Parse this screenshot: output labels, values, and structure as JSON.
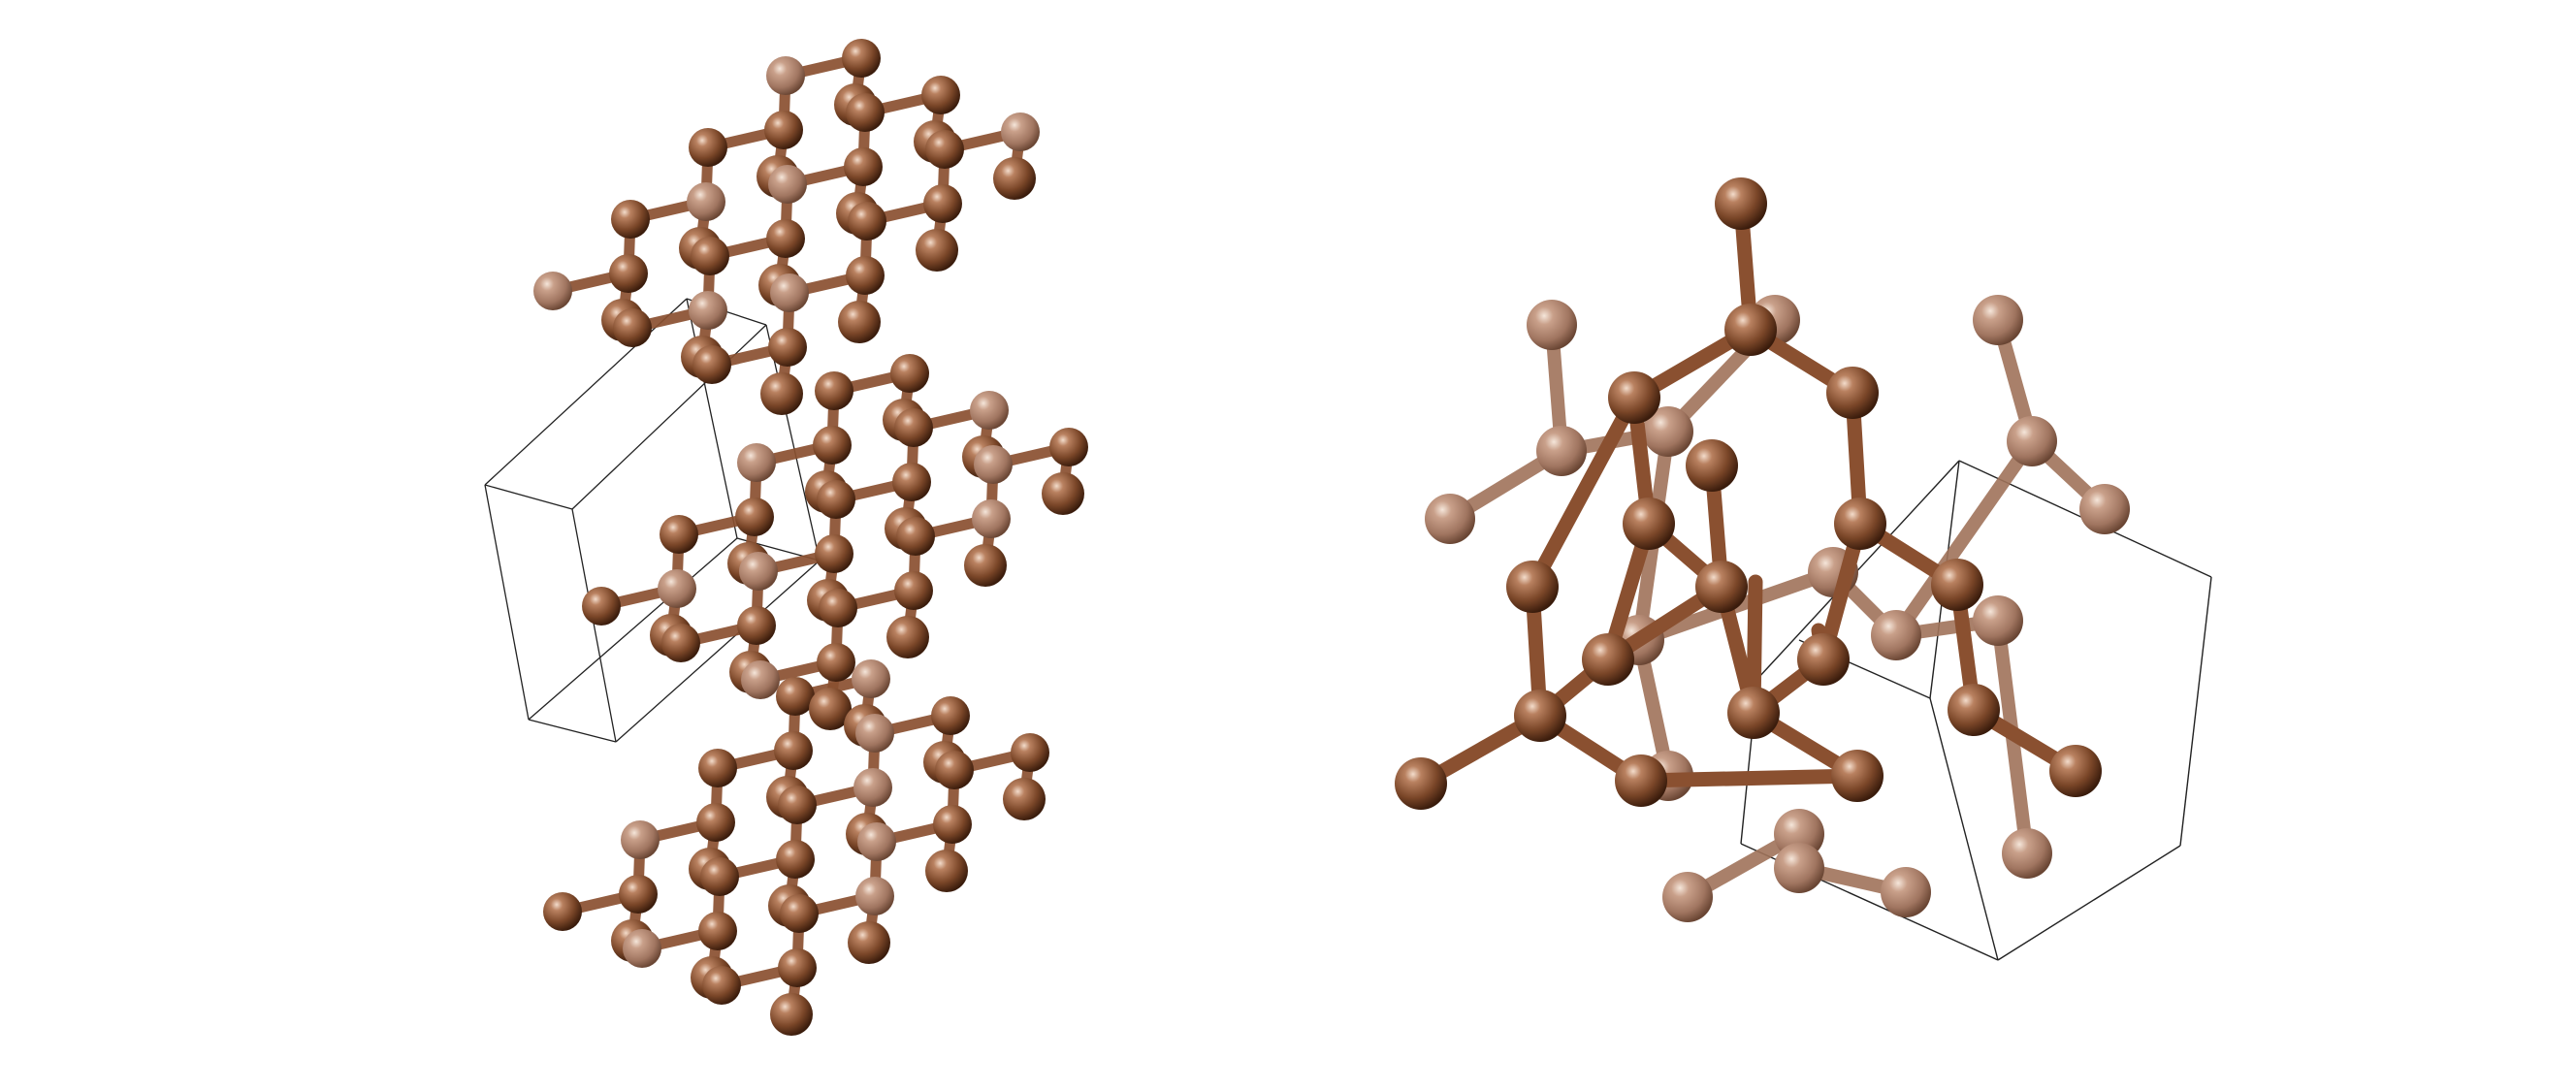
{
  "figure": {
    "panels": [
      {
        "name": "graphite-structure",
        "atom_color": "#7a4628",
        "bond_color": "#8a5030",
        "cell_color": "#222222"
      },
      {
        "name": "diamond-structure",
        "atom_color": "#7a4628",
        "bond_color": "#8a5030",
        "cell_color": "#222222"
      }
    ]
  }
}
